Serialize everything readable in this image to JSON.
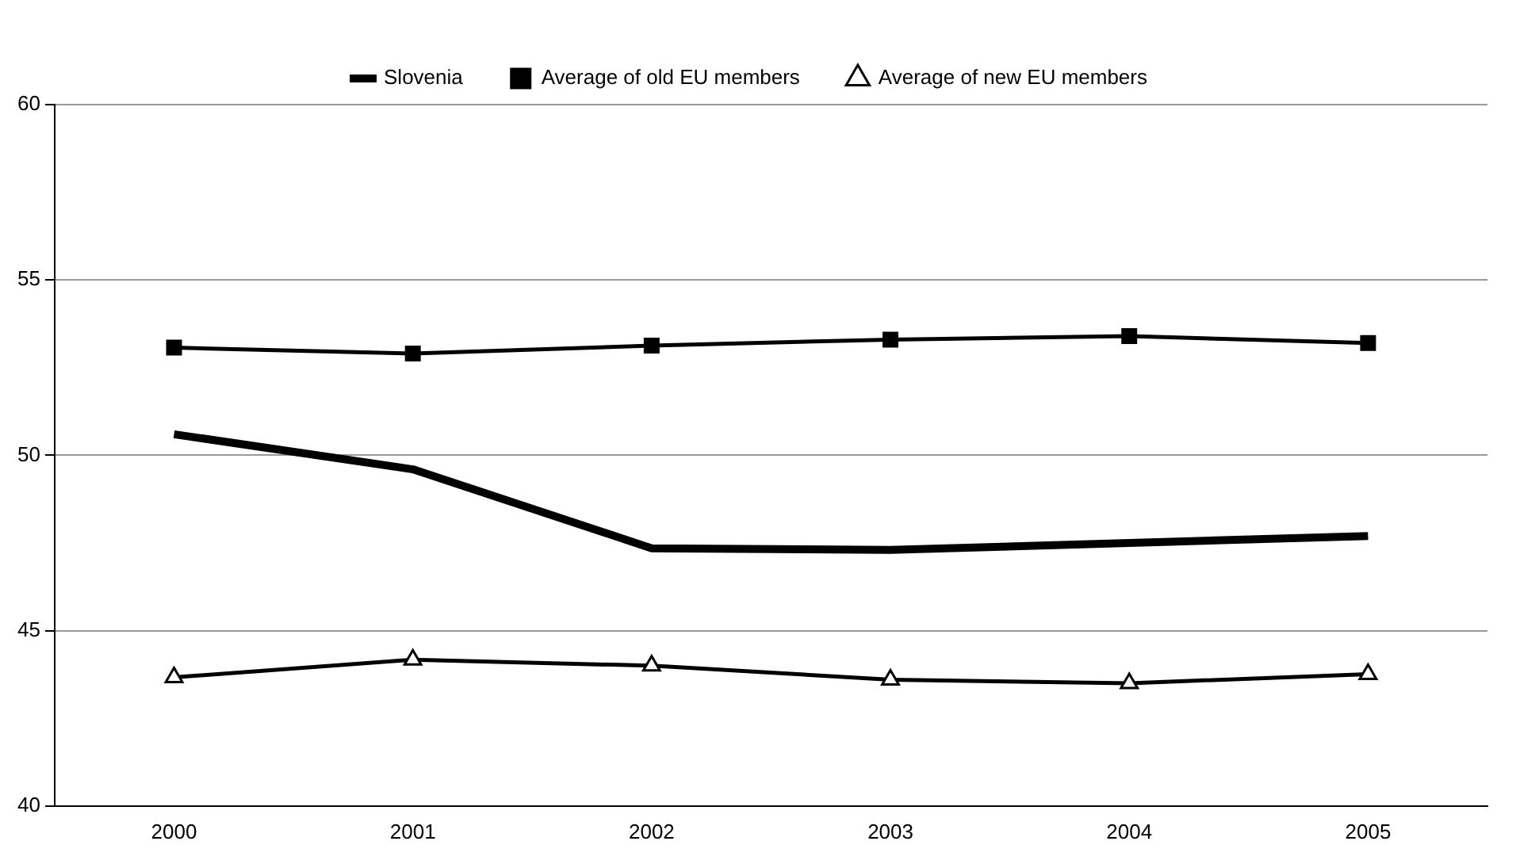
{
  "chart_data": {
    "type": "line",
    "categories": [
      "2000",
      "2001",
      "2002",
      "2003",
      "2004",
      "2005"
    ],
    "series": [
      {
        "name": "Slovenia",
        "color": "#000000",
        "marker": "none",
        "values": [
          50.6,
          49.6,
          47.35,
          47.3,
          47.5,
          47.7
        ]
      },
      {
        "name": "Average of old EU members",
        "color": "#000000",
        "marker": "square",
        "values": [
          53.07,
          52.9,
          53.13,
          53.3,
          53.4,
          53.2
        ]
      },
      {
        "name": "Average of new EU members",
        "color": "#000000",
        "marker": "triangle",
        "values": [
          43.67,
          44.17,
          44.0,
          43.6,
          43.5,
          43.76
        ]
      }
    ],
    "ylim": [
      40,
      60
    ],
    "yticks": [
      40,
      45,
      50,
      55,
      60
    ],
    "grid": "y",
    "legend": "top"
  }
}
